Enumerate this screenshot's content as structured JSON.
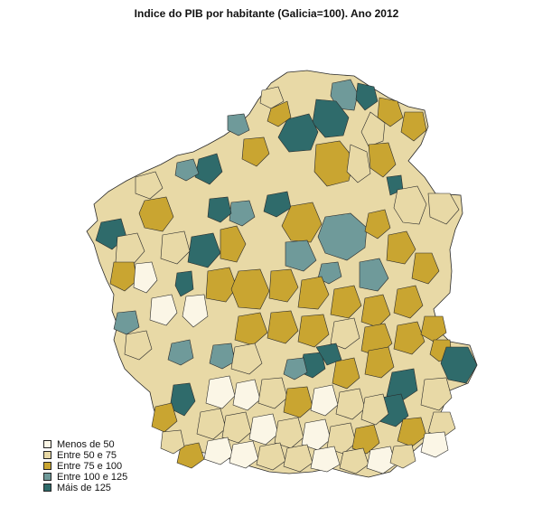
{
  "title": "Indice do PIB por habitante (Galicia=100). Ano 2012",
  "colors": {
    "menos_50": "#fbf6e6",
    "entre_50_75": "#e8d9a6",
    "entre_75_100": "#c9a531",
    "entre_100_125": "#6f9a9a",
    "mais_125": "#2f6b6b",
    "border": "#2a2a2a"
  },
  "legend": [
    {
      "label": "Menos de 50",
      "color": "#fbf6e6"
    },
    {
      "label": "Entre 50 e 75",
      "color": "#e8d9a6"
    },
    {
      "label": "Entre 75 e 100",
      "color": "#c9a531"
    },
    {
      "label": "Entre 100 e 125",
      "color": "#6f9a9a"
    },
    {
      "label": "Máis de 125",
      "color": "#2f6b6b"
    }
  ]
}
